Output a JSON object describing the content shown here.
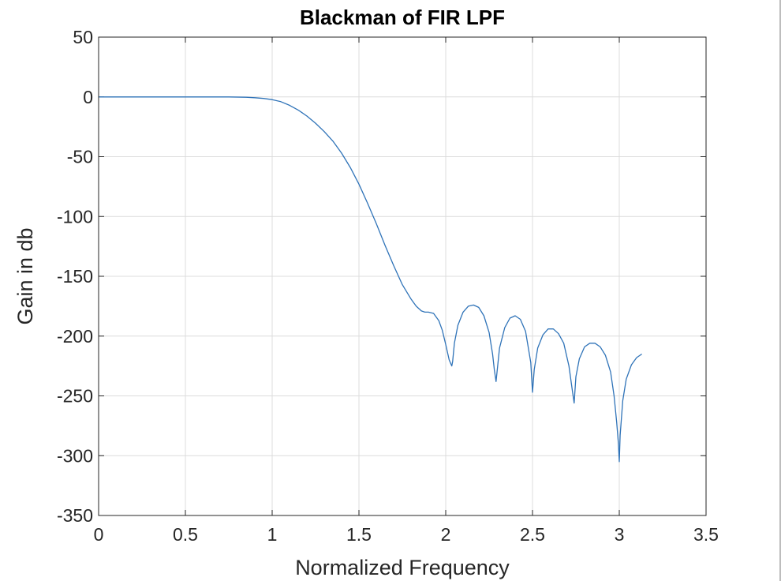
{
  "chart_data": {
    "type": "line",
    "title": "Blackman of FIR LPF",
    "xlabel": "Normalized Frequency",
    "ylabel": "Gain in db",
    "xlim": [
      0,
      3.5
    ],
    "ylim": [
      -350,
      50
    ],
    "xticks": [
      "0",
      "0.5",
      "1",
      "1.5",
      "2",
      "2.5",
      "3",
      "3.5"
    ],
    "yticks": [
      "50",
      "0",
      "-50",
      "-100",
      "-150",
      "-200",
      "-250",
      "-300",
      "-350"
    ],
    "xtick_values": [
      0,
      0.5,
      1,
      1.5,
      2,
      2.5,
      3,
      3.5
    ],
    "ytick_values": [
      50,
      0,
      -50,
      -100,
      -150,
      -200,
      -250,
      -300,
      -350
    ],
    "grid": true,
    "series": [
      {
        "color": "#2f73b8",
        "x": [
          0,
          0.2,
          0.4,
          0.6,
          0.75,
          0.85,
          0.9,
          0.95,
          1.0,
          1.05,
          1.1,
          1.15,
          1.2,
          1.25,
          1.3,
          1.35,
          1.4,
          1.45,
          1.5,
          1.55,
          1.6,
          1.65,
          1.7,
          1.75,
          1.8,
          1.83,
          1.86,
          1.88,
          1.9,
          1.93,
          1.96,
          1.98,
          2.0,
          2.02,
          2.035,
          2.04,
          2.05,
          2.07,
          2.1,
          2.13,
          2.16,
          2.19,
          2.22,
          2.25,
          2.27,
          2.28,
          2.29,
          2.31,
          2.34,
          2.37,
          2.4,
          2.43,
          2.46,
          2.49,
          2.5,
          2.51,
          2.53,
          2.56,
          2.59,
          2.62,
          2.65,
          2.68,
          2.71,
          2.73,
          2.74,
          2.75,
          2.77,
          2.8,
          2.83,
          2.86,
          2.89,
          2.92,
          2.95,
          2.97,
          2.985,
          2.995,
          3.0,
          3.005,
          3.02,
          3.04,
          3.07,
          3.1,
          3.13
        ],
        "y": [
          0,
          0,
          0,
          0,
          0,
          -0.3,
          -0.7,
          -1.3,
          -2.3,
          -4,
          -7,
          -11,
          -16,
          -22,
          -29,
          -37,
          -47,
          -59,
          -73,
          -89,
          -106,
          -124,
          -141,
          -157,
          -169,
          -175,
          -179,
          -180,
          -180,
          -181,
          -187,
          -195,
          -207,
          -220,
          -225,
          -221,
          -206,
          -191,
          -180,
          -175,
          -174,
          -176,
          -183,
          -197,
          -215,
          -228,
          -238,
          -210,
          -193,
          -185,
          -183,
          -186,
          -196,
          -222,
          -247,
          -228,
          -210,
          -199,
          -194,
          -194,
          -198,
          -206,
          -225,
          -246,
          -256,
          -234,
          -219,
          -209,
          -206,
          -206,
          -209,
          -216,
          -230,
          -250,
          -272,
          -290,
          -305,
          -283,
          -254,
          -236,
          -224,
          -218,
          -215
        ]
      }
    ]
  }
}
